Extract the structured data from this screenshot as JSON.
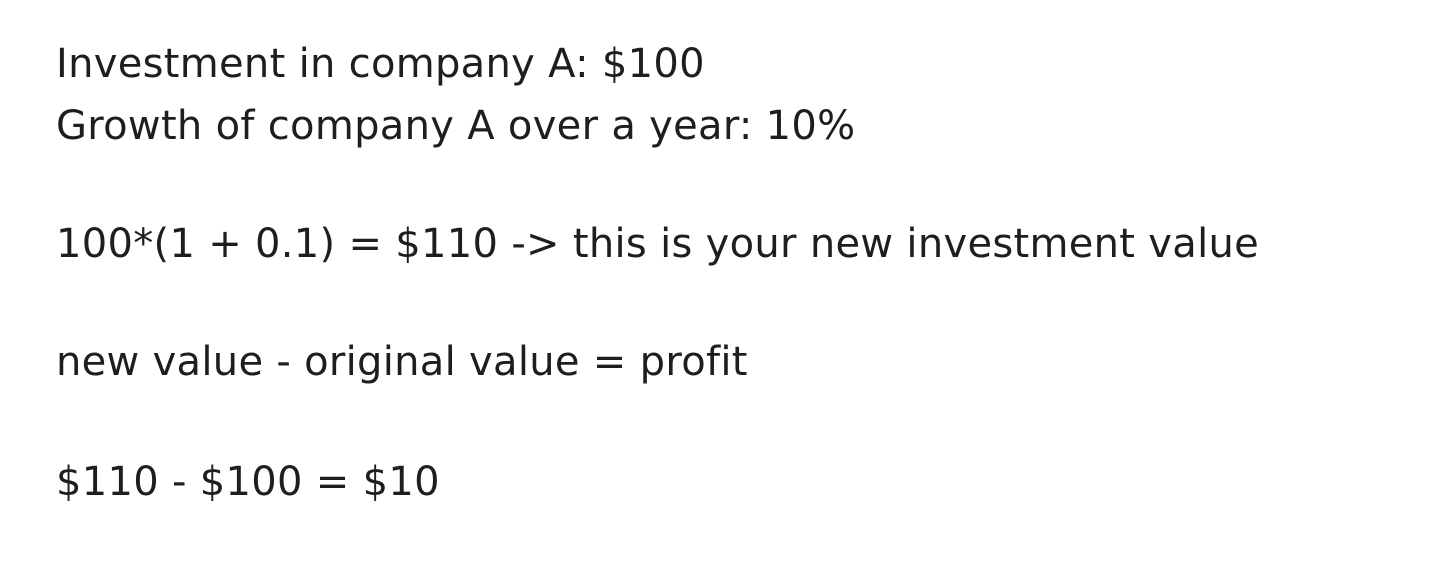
{
  "note": {
    "line1": "Investment in company A: $100",
    "line2": "Growth of company A over a year: 10%",
    "line3": "100*(1 + 0.1) = $110 -> this is your new investment value",
    "line4": "new value - original value = profit",
    "line5": "$110 - $100 = $10"
  },
  "colors": {
    "background": "#ffffff",
    "text": "#1e1e1e"
  }
}
